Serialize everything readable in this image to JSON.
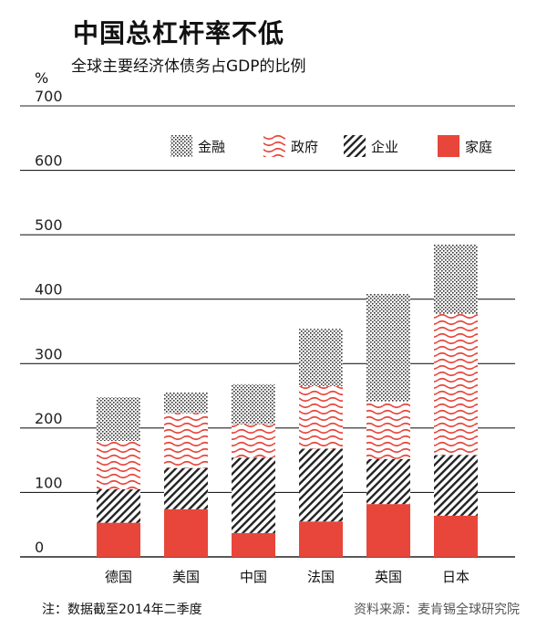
{
  "title": "中国总杠杆率不低",
  "subtitle": "全球主要经济体债务占GDP的比例",
  "unit": "%",
  "footnote": "注：数据截至2014年二季度",
  "source": "资料来源：麦肯锡全球研究院",
  "colors": {
    "finance": "#333333",
    "government": "#e8463b",
    "corporate": "#222222",
    "household": "#e8463b",
    "grid": "#222222"
  },
  "chart_data": {
    "type": "bar",
    "stacked": true,
    "categories": [
      "德国",
      "美国",
      "中国",
      "法国",
      "英国",
      "日本"
    ],
    "ylim": [
      0,
      700
    ],
    "yticks": [
      0,
      100,
      200,
      300,
      400,
      500,
      600,
      700
    ],
    "grid": true,
    "legend_position": "top",
    "series": [
      {
        "name": "家庭",
        "key": "household",
        "pattern": "solid",
        "values": [
          53,
          74,
          37,
          55,
          82,
          64
        ]
      },
      {
        "name": "企业",
        "key": "corporate",
        "pattern": "diagonal",
        "values": [
          52,
          64,
          117,
          113,
          70,
          94
        ]
      },
      {
        "name": "政府",
        "key": "government",
        "pattern": "wave",
        "values": [
          75,
          85,
          52,
          97,
          89,
          219
        ]
      },
      {
        "name": "金融",
        "key": "finance",
        "pattern": "dots",
        "values": [
          68,
          32,
          62,
          89,
          167,
          108
        ]
      }
    ],
    "legend_order": [
      "金融",
      "政府",
      "企业",
      "家庭"
    ]
  }
}
